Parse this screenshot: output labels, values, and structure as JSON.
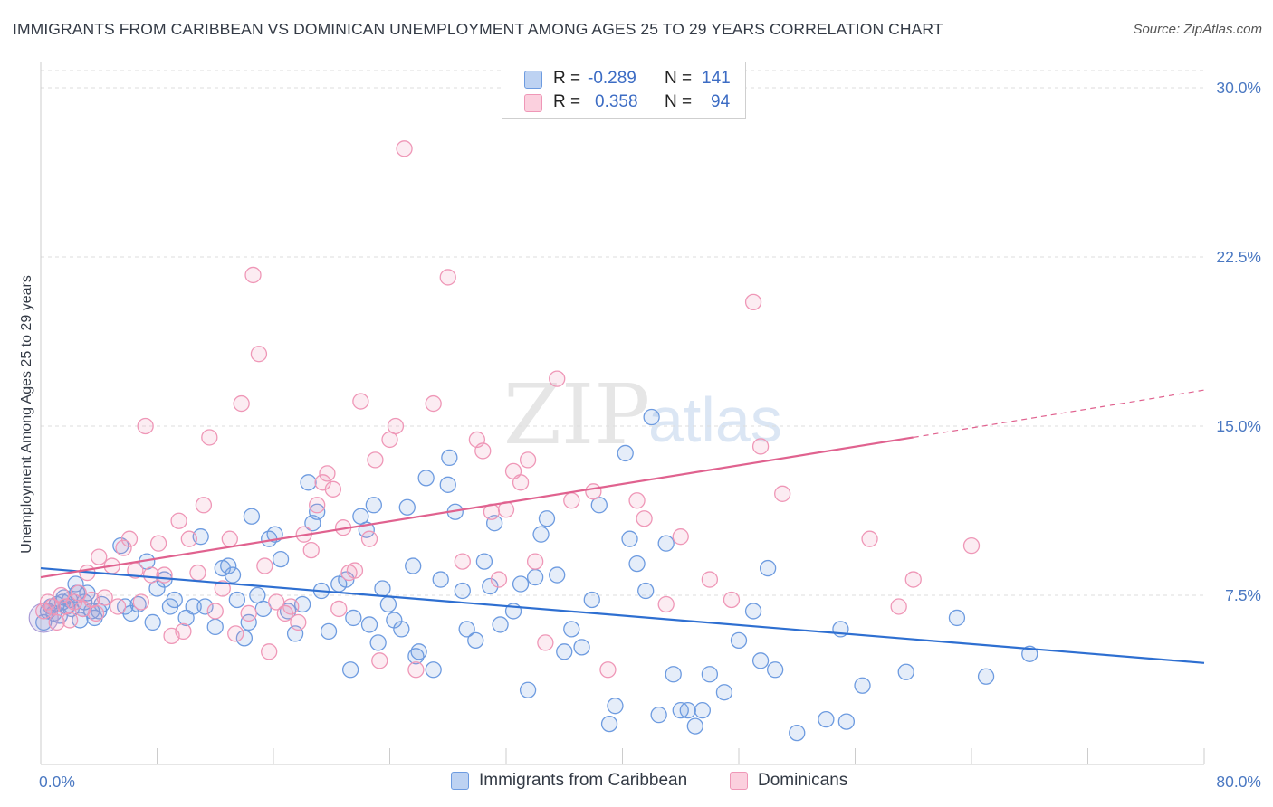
{
  "header": {
    "title": "IMMIGRANTS FROM CARIBBEAN VS DOMINICAN UNEMPLOYMENT AMONG AGES 25 TO 29 YEARS CORRELATION CHART",
    "source": "Source: ZipAtlas.com"
  },
  "watermark": {
    "zip": "ZIP",
    "atlas": "atlas"
  },
  "legend": {
    "r_label": "R =",
    "n_label": "N =",
    "rows": [
      {
        "series": "Immigrants from Caribbean",
        "r": "-0.289",
        "n": "141"
      },
      {
        "series": "Dominicans",
        "r": "0.358",
        "n": "94"
      }
    ]
  },
  "chart_data": {
    "type": "scatter",
    "title": "IMMIGRANTS FROM CARIBBEAN VS DOMINICAN UNEMPLOYMENT AMONG AGES 25 TO 29 YEARS CORRELATION CHART",
    "xlabel": "",
    "ylabel": "Unemployment Among Ages 25 to 29 years",
    "xlim": [
      0,
      80
    ],
    "ylim": [
      0,
      30
    ],
    "x_ticks": [
      "0.0%",
      "80.0%"
    ],
    "y_ticks": [
      {
        "value": 7.5,
        "label": "7.5%"
      },
      {
        "value": 15,
        "label": "15.0%"
      },
      {
        "value": 22.5,
        "label": "22.5%"
      },
      {
        "value": 30,
        "label": "30.0%"
      }
    ],
    "grid": "horizontal dashed",
    "legend_position": "top-center",
    "colors": {
      "Immigrants from Caribbean": "#6d9be0",
      "Dominicans": "#ef97b7",
      "blue_line": "#2e6fd1",
      "pink_line": "#e0628f"
    },
    "series": [
      {
        "name": "Immigrants from Caribbean",
        "trend": {
          "x": [
            0,
            80
          ],
          "y": [
            8.7,
            4.5
          ]
        },
        "points": [
          [
            0.2,
            6.3
          ],
          [
            0.5,
            6.8
          ],
          [
            0.7,
            7.0
          ],
          [
            0.9,
            6.7
          ],
          [
            1.1,
            7.1
          ],
          [
            1.3,
            6.6
          ],
          [
            1.5,
            7.2
          ],
          [
            1.6,
            7.4
          ],
          [
            1.8,
            7.0
          ],
          [
            2.0,
            7.3
          ],
          [
            2.1,
            6.9
          ],
          [
            2.4,
            8.0
          ],
          [
            2.5,
            7.6
          ],
          [
            2.7,
            6.4
          ],
          [
            2.9,
            6.9
          ],
          [
            3.0,
            7.2
          ],
          [
            3.2,
            7.6
          ],
          [
            3.5,
            6.8
          ],
          [
            3.7,
            6.5
          ],
          [
            4.0,
            6.8
          ],
          [
            4.2,
            7.1
          ],
          [
            5.5,
            9.7
          ],
          [
            5.8,
            7.0
          ],
          [
            6.2,
            6.7
          ],
          [
            6.7,
            7.1
          ],
          [
            7.3,
            9.0
          ],
          [
            7.7,
            6.3
          ],
          [
            8.0,
            7.8
          ],
          [
            8.5,
            8.2
          ],
          [
            8.9,
            7.0
          ],
          [
            9.2,
            7.3
          ],
          [
            10.0,
            6.5
          ],
          [
            10.5,
            7.0
          ],
          [
            11.0,
            10.1
          ],
          [
            11.3,
            7.0
          ],
          [
            12.0,
            6.1
          ],
          [
            12.5,
            8.7
          ],
          [
            12.9,
            8.8
          ],
          [
            13.2,
            8.4
          ],
          [
            13.5,
            7.3
          ],
          [
            14.0,
            5.6
          ],
          [
            14.3,
            6.3
          ],
          [
            14.5,
            11.0
          ],
          [
            14.9,
            7.5
          ],
          [
            15.3,
            6.9
          ],
          [
            15.7,
            10.0
          ],
          [
            16.1,
            10.2
          ],
          [
            16.5,
            9.1
          ],
          [
            17.0,
            6.8
          ],
          [
            17.5,
            5.8
          ],
          [
            18.0,
            7.1
          ],
          [
            18.4,
            12.5
          ],
          [
            18.7,
            10.7
          ],
          [
            19.0,
            11.2
          ],
          [
            19.3,
            7.7
          ],
          [
            19.8,
            5.9
          ],
          [
            20.5,
            8.0
          ],
          [
            21.0,
            8.2
          ],
          [
            21.3,
            4.2
          ],
          [
            21.5,
            6.5
          ],
          [
            22.0,
            11.0
          ],
          [
            22.4,
            10.4
          ],
          [
            22.6,
            6.2
          ],
          [
            22.9,
            11.5
          ],
          [
            23.2,
            5.4
          ],
          [
            23.5,
            7.8
          ],
          [
            23.9,
            7.1
          ],
          [
            24.3,
            6.4
          ],
          [
            24.8,
            6.0
          ],
          [
            25.2,
            11.4
          ],
          [
            25.6,
            8.8
          ],
          [
            25.8,
            4.8
          ],
          [
            26.0,
            5.0
          ],
          [
            26.5,
            12.7
          ],
          [
            27.0,
            4.2
          ],
          [
            27.5,
            8.2
          ],
          [
            28.0,
            12.4
          ],
          [
            28.1,
            13.6
          ],
          [
            28.5,
            11.2
          ],
          [
            29.0,
            7.7
          ],
          [
            29.3,
            6.0
          ],
          [
            29.9,
            5.5
          ],
          [
            30.5,
            9.0
          ],
          [
            30.9,
            7.9
          ],
          [
            31.2,
            10.7
          ],
          [
            31.6,
            6.2
          ],
          [
            32.5,
            6.8
          ],
          [
            33.0,
            8.0
          ],
          [
            33.5,
            3.3
          ],
          [
            34.0,
            8.3
          ],
          [
            34.4,
            10.2
          ],
          [
            34.8,
            10.9
          ],
          [
            35.5,
            8.4
          ],
          [
            36.0,
            5.0
          ],
          [
            36.5,
            6.0
          ],
          [
            37.2,
            5.2
          ],
          [
            37.9,
            7.3
          ],
          [
            38.4,
            11.5
          ],
          [
            39.1,
            1.8
          ],
          [
            39.5,
            2.6
          ],
          [
            40.2,
            13.8
          ],
          [
            40.5,
            10.0
          ],
          [
            41.0,
            8.9
          ],
          [
            41.6,
            7.7
          ],
          [
            42.0,
            15.4
          ],
          [
            42.5,
            2.2
          ],
          [
            43.0,
            9.8
          ],
          [
            43.5,
            4.0
          ],
          [
            44.0,
            2.4
          ],
          [
            44.5,
            2.4
          ],
          [
            45.0,
            1.7
          ],
          [
            45.5,
            2.4
          ],
          [
            46.0,
            4.0
          ],
          [
            47.0,
            3.2
          ],
          [
            48.0,
            5.5
          ],
          [
            49.0,
            6.8
          ],
          [
            49.5,
            4.6
          ],
          [
            50.0,
            8.7
          ],
          [
            50.5,
            4.2
          ],
          [
            52.0,
            1.4
          ],
          [
            54.0,
            2.0
          ],
          [
            55.0,
            6.0
          ],
          [
            55.4,
            1.9
          ],
          [
            56.5,
            3.5
          ],
          [
            59.5,
            4.1
          ],
          [
            63.0,
            6.5
          ],
          [
            65.0,
            3.9
          ],
          [
            68.0,
            4.9
          ]
        ]
      },
      {
        "name": "Dominicans",
        "trend": {
          "x": [
            0,
            60
          ],
          "y": [
            8.3,
            14.5
          ]
        },
        "trend_extension": {
          "x": [
            60,
            80
          ],
          "y": [
            14.5,
            16.6
          ]
        },
        "points": [
          [
            0.2,
            6.8
          ],
          [
            0.5,
            7.2
          ],
          [
            0.8,
            7.0
          ],
          [
            1.1,
            6.3
          ],
          [
            1.4,
            7.5
          ],
          [
            1.7,
            7.0
          ],
          [
            2.0,
            6.4
          ],
          [
            2.3,
            7.2
          ],
          [
            2.6,
            7.6
          ],
          [
            2.9,
            6.9
          ],
          [
            3.2,
            8.5
          ],
          [
            3.5,
            7.3
          ],
          [
            3.8,
            6.7
          ],
          [
            4.0,
            9.2
          ],
          [
            4.4,
            7.4
          ],
          [
            4.9,
            8.8
          ],
          [
            5.3,
            7.0
          ],
          [
            5.7,
            9.6
          ],
          [
            6.1,
            10.0
          ],
          [
            6.5,
            8.6
          ],
          [
            6.9,
            7.2
          ],
          [
            7.2,
            15.0
          ],
          [
            7.6,
            8.4
          ],
          [
            8.1,
            9.8
          ],
          [
            8.5,
            8.4
          ],
          [
            9.0,
            5.7
          ],
          [
            9.5,
            10.8
          ],
          [
            9.8,
            5.9
          ],
          [
            10.2,
            10.0
          ],
          [
            10.8,
            8.5
          ],
          [
            11.2,
            11.5
          ],
          [
            11.6,
            14.5
          ],
          [
            12.0,
            6.8
          ],
          [
            12.5,
            7.8
          ],
          [
            13.0,
            10.0
          ],
          [
            13.4,
            5.8
          ],
          [
            13.8,
            16.0
          ],
          [
            14.3,
            6.7
          ],
          [
            14.6,
            21.7
          ],
          [
            15.0,
            18.2
          ],
          [
            15.4,
            8.8
          ],
          [
            15.7,
            5.0
          ],
          [
            16.2,
            7.2
          ],
          [
            16.8,
            6.7
          ],
          [
            17.2,
            7.0
          ],
          [
            17.7,
            6.3
          ],
          [
            18.1,
            10.2
          ],
          [
            18.6,
            9.5
          ],
          [
            19.0,
            11.5
          ],
          [
            19.4,
            12.5
          ],
          [
            19.7,
            12.9
          ],
          [
            20.1,
            12.2
          ],
          [
            20.5,
            6.9
          ],
          [
            20.8,
            10.5
          ],
          [
            21.2,
            8.5
          ],
          [
            21.6,
            8.6
          ],
          [
            22.0,
            16.1
          ],
          [
            22.6,
            10.0
          ],
          [
            23.0,
            13.5
          ],
          [
            23.3,
            4.6
          ],
          [
            24.0,
            14.4
          ],
          [
            24.4,
            15.0
          ],
          [
            25.0,
            27.3
          ],
          [
            25.8,
            4.2
          ],
          [
            27.0,
            16.0
          ],
          [
            28.0,
            21.6
          ],
          [
            29.0,
            9.0
          ],
          [
            30.0,
            14.4
          ],
          [
            30.4,
            13.9
          ],
          [
            31.0,
            11.2
          ],
          [
            31.5,
            8.2
          ],
          [
            32.0,
            11.3
          ],
          [
            32.5,
            13.0
          ],
          [
            33.0,
            12.5
          ],
          [
            33.5,
            13.5
          ],
          [
            34.0,
            9.0
          ],
          [
            34.7,
            5.4
          ],
          [
            35.5,
            17.1
          ],
          [
            36.5,
            11.7
          ],
          [
            38.0,
            12.1
          ],
          [
            39.0,
            4.2
          ],
          [
            41.0,
            11.7
          ],
          [
            41.5,
            10.9
          ],
          [
            43.0,
            7.1
          ],
          [
            44.0,
            10.1
          ],
          [
            46.0,
            8.2
          ],
          [
            47.5,
            7.3
          ],
          [
            49.0,
            20.5
          ],
          [
            49.5,
            14.1
          ],
          [
            51.0,
            12.0
          ],
          [
            57.0,
            10.0
          ],
          [
            59.0,
            7.0
          ],
          [
            60.0,
            8.2
          ],
          [
            64.0,
            9.7
          ]
        ]
      }
    ]
  }
}
